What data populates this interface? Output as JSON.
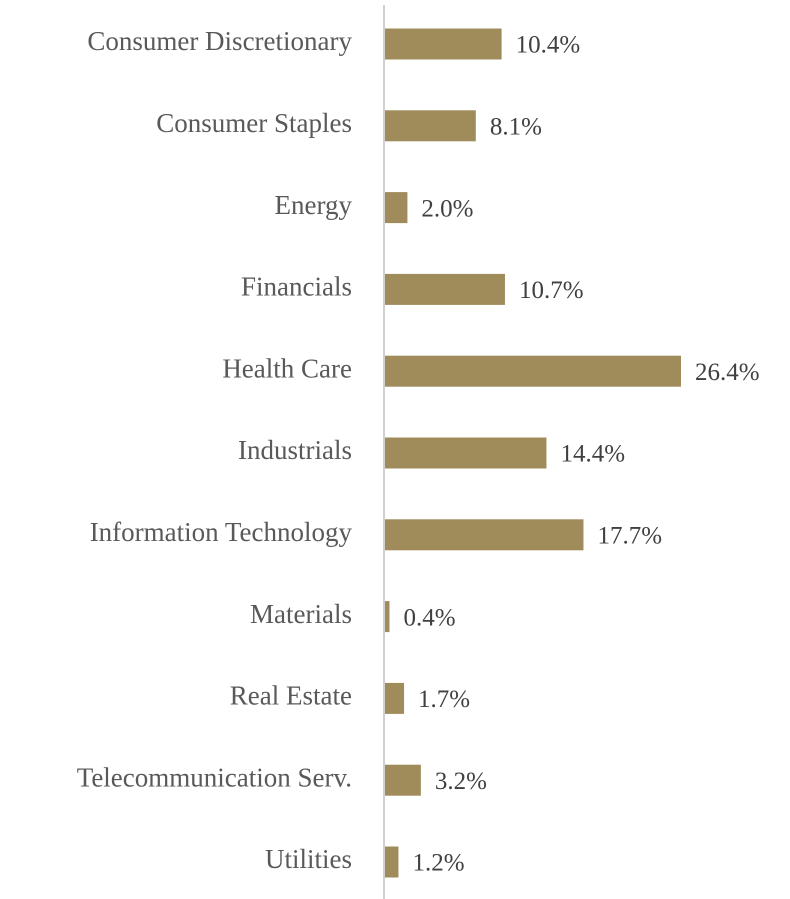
{
  "chart_data": {
    "type": "bar",
    "orientation": "horizontal",
    "categories": [
      "Consumer Discretionary",
      "Consumer Staples",
      "Energy",
      "Financials",
      "Health Care",
      "Industrials",
      "Information Technology",
      "Materials",
      "Real Estate",
      "Telecommunication Serv.",
      "Utilities"
    ],
    "values": [
      10.4,
      8.1,
      2.0,
      10.7,
      26.4,
      14.4,
      17.7,
      0.4,
      1.7,
      3.2,
      1.2
    ],
    "value_labels": [
      "10.4%",
      "8.1%",
      "2.0%",
      "10.7%",
      "26.4%",
      "14.4%",
      "17.7%",
      "0.4%",
      "1.7%",
      "3.2%",
      "1.2%"
    ],
    "color": "#a08c5b"
  }
}
